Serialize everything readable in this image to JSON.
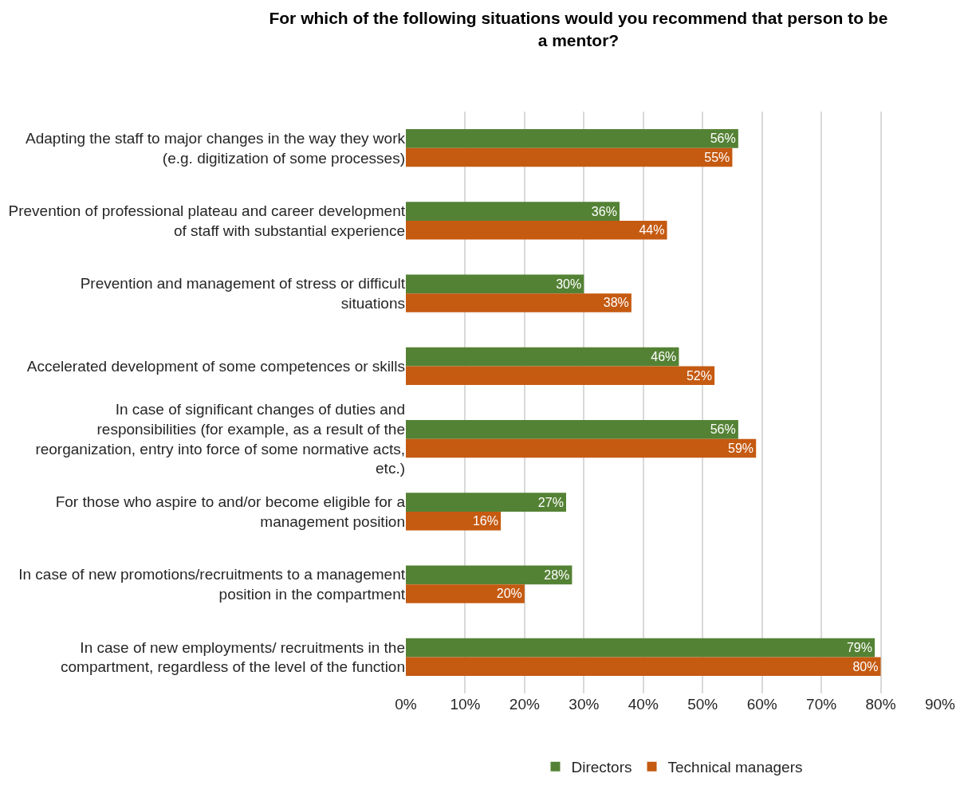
{
  "chart_data": {
    "type": "bar",
    "orientation": "horizontal",
    "title": "For which of the following situations would you recommend that person to be a mentor?",
    "categories": [
      "Adapting the staff to major changes in the way they work (e.g. digitization of some processes)",
      "Prevention of professional plateau and career development of staff with substantial experience",
      "Prevention and management of stress or difficult situations",
      "Accelerated development of some competences or skills",
      "In case of significant changes of duties and responsibilities (for example, as a result of the reorganization, entry into force of some normative acts, etc.)",
      "For those who aspire to and/or become eligible for a management position",
      "In case of new promotions/recruitments to a management position in the compartment",
      "In case of new employments/ recruitments in the compartment, regardless of the level of the function"
    ],
    "series": [
      {
        "name": "Directors",
        "color": "#548235",
        "values": [
          56,
          36,
          30,
          46,
          56,
          27,
          28,
          79
        ],
        "value_labels": [
          "56%",
          "36%",
          "30%",
          "46%",
          "56%",
          "27%",
          "28%",
          "79%"
        ]
      },
      {
        "name": "Technical managers",
        "color": "#c55a11",
        "values": [
          55,
          44,
          38,
          52,
          59,
          16,
          20,
          80
        ],
        "value_labels": [
          "55%",
          "44%",
          "38%",
          "52%",
          "59%",
          "16%",
          "20%",
          "80%"
        ]
      }
    ],
    "xlim": [
      0,
      90
    ],
    "xticks": [
      {
        "value": 0,
        "label": "0%"
      },
      {
        "value": 10,
        "label": "10%"
      },
      {
        "value": 20,
        "label": "20%"
      },
      {
        "value": 30,
        "label": "30%"
      },
      {
        "value": 40,
        "label": "40%"
      },
      {
        "value": 50,
        "label": "50%"
      },
      {
        "value": 60,
        "label": "60%"
      },
      {
        "value": 70,
        "label": "70%"
      },
      {
        "value": 80,
        "label": "80%"
      },
      {
        "value": 90,
        "label": "90%"
      }
    ],
    "grid": "x",
    "legend": "bottom"
  }
}
